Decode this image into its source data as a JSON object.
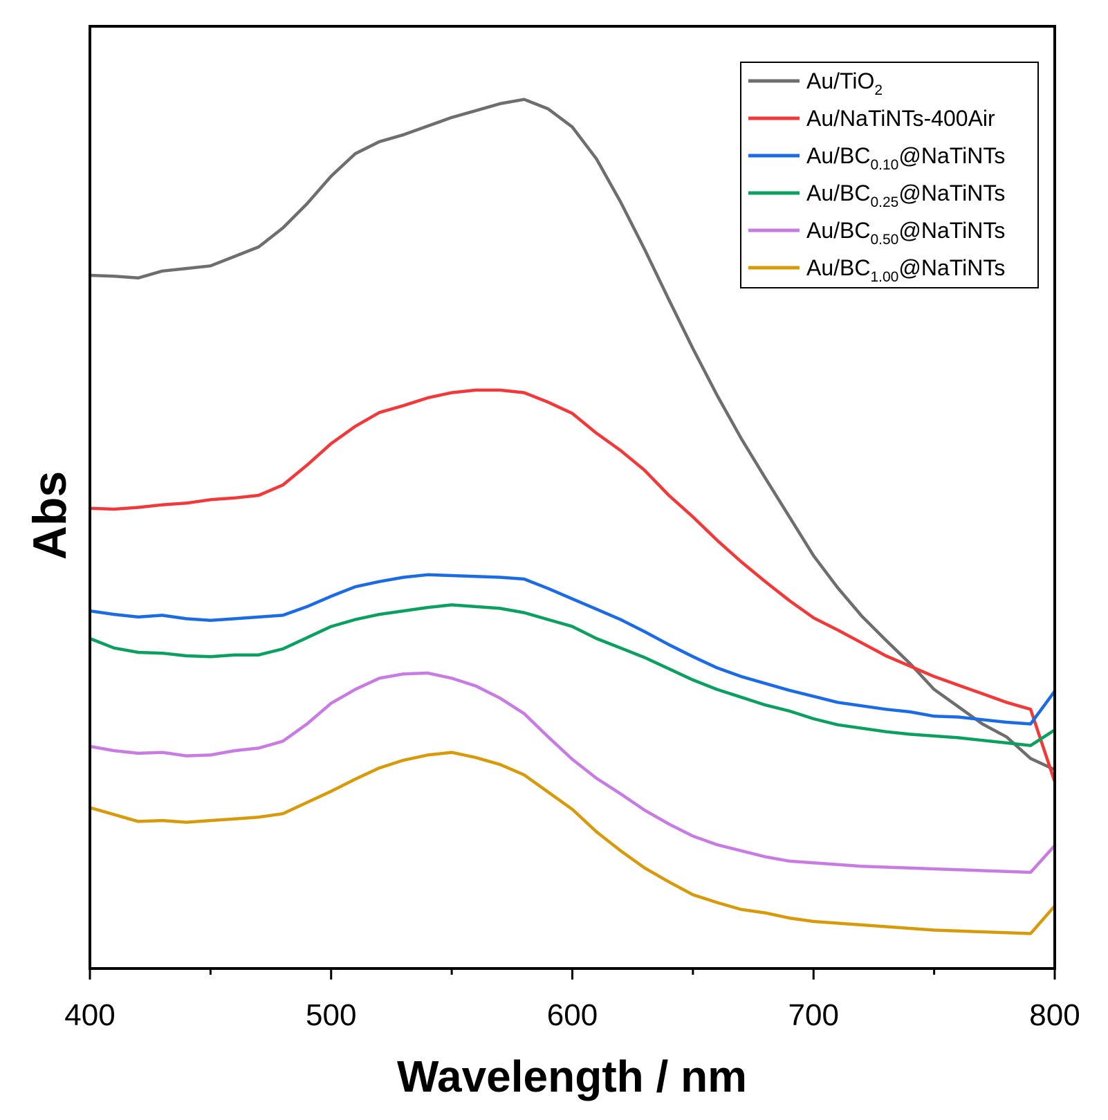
{
  "chart_data": {
    "type": "line",
    "xlabel": "Wavelength / nm",
    "ylabel": "Abs",
    "xlim": [
      400,
      800
    ],
    "ylim": [
      0,
      100
    ],
    "x_ticks": [
      400,
      500,
      600,
      700,
      800
    ],
    "x_tick_labels": [
      "400",
      "500",
      "600",
      "700",
      "800"
    ],
    "y_ticks_shown": false,
    "legend_position": "top-right",
    "series": [
      {
        "name": "Au/TiO2",
        "label_main": "Au/TiO",
        "label_sub": "2",
        "label_after": "",
        "color": "#6e6e6e",
        "x": [
          400,
          410,
          420,
          430,
          440,
          450,
          460,
          470,
          480,
          490,
          500,
          510,
          520,
          530,
          540,
          550,
          560,
          570,
          580,
          590,
          600,
          610,
          620,
          630,
          640,
          650,
          660,
          670,
          680,
          690,
          700,
          710,
          720,
          730,
          740,
          750,
          760,
          770,
          780,
          790,
          800
        ],
        "y": [
          76.5,
          76.4,
          76.2,
          77.0,
          77.3,
          77.6,
          78.7,
          79.8,
          82.0,
          84.8,
          88.0,
          90.6,
          92.0,
          92.8,
          93.8,
          94.8,
          95.6,
          96.4,
          96.9,
          95.8,
          93.7,
          90.0,
          85.0,
          79.5,
          73.7,
          68.0,
          62.6,
          57.6,
          53.0,
          48.5,
          44.0,
          40.3,
          37.0,
          34.2,
          31.5,
          28.5,
          26.5,
          24.5,
          23.0,
          20.5,
          19.2
        ]
      },
      {
        "name": "Au/NaTiNTs-400Air",
        "label_main": "Au/NaTiNTs-400Air",
        "label_sub": "",
        "label_after": "",
        "color": "#f23838",
        "x": [
          400,
          410,
          420,
          430,
          440,
          450,
          460,
          470,
          480,
          490,
          500,
          510,
          520,
          530,
          540,
          550,
          560,
          570,
          580,
          590,
          600,
          610,
          620,
          630,
          640,
          650,
          660,
          670,
          680,
          690,
          700,
          710,
          720,
          730,
          740,
          750,
          760,
          770,
          780,
          790,
          800
        ],
        "y": [
          49.5,
          49.4,
          49.6,
          49.9,
          50.1,
          50.5,
          50.7,
          51.0,
          52.2,
          54.5,
          57.0,
          59.0,
          60.6,
          61.4,
          62.3,
          62.9,
          63.2,
          63.2,
          62.9,
          61.8,
          60.5,
          58.2,
          56.2,
          53.9,
          51.0,
          48.5,
          45.8,
          43.3,
          41.0,
          38.8,
          36.8,
          35.4,
          33.9,
          32.4,
          31.2,
          30.0,
          29.0,
          28.0,
          27.0,
          26.2,
          17.8
        ]
      },
      {
        "name": "Au/BC0.10@NaTiNTs",
        "label_main": "Au/BC",
        "label_sub": "0.10",
        "label_after": "@NaTiNTs",
        "color": "#1a6be6",
        "x": [
          400,
          410,
          420,
          430,
          440,
          450,
          460,
          470,
          480,
          490,
          500,
          510,
          520,
          530,
          540,
          550,
          560,
          570,
          580,
          590,
          600,
          610,
          620,
          630,
          640,
          650,
          660,
          670,
          680,
          690,
          700,
          710,
          720,
          730,
          740,
          750,
          760,
          770,
          780,
          790,
          800
        ],
        "y": [
          37.6,
          37.2,
          36.9,
          37.1,
          36.7,
          36.5,
          36.7,
          36.9,
          37.1,
          38.1,
          39.3,
          40.4,
          41.0,
          41.5,
          41.8,
          41.7,
          41.6,
          41.5,
          41.3,
          40.2,
          39.0,
          37.8,
          36.6,
          35.2,
          33.7,
          32.3,
          31.0,
          30.0,
          29.2,
          28.4,
          27.7,
          27.0,
          26.6,
          26.2,
          25.9,
          25.4,
          25.3,
          25.0,
          24.7,
          24.5,
          28.3
        ]
      },
      {
        "name": "Au/BC0.25@NaTiNTs",
        "label_main": "Au/BC",
        "label_sub": "0.25",
        "label_after": "@NaTiNTs",
        "color": "#0aa060",
        "x": [
          400,
          410,
          420,
          430,
          440,
          450,
          460,
          470,
          480,
          490,
          500,
          510,
          520,
          530,
          540,
          550,
          560,
          570,
          580,
          590,
          600,
          610,
          620,
          630,
          640,
          650,
          660,
          670,
          680,
          690,
          700,
          710,
          720,
          730,
          740,
          750,
          760,
          770,
          780,
          790,
          800
        ],
        "y": [
          34.4,
          33.3,
          32.8,
          32.7,
          32.4,
          32.3,
          32.5,
          32.5,
          33.2,
          34.5,
          35.8,
          36.6,
          37.2,
          37.6,
          38.0,
          38.3,
          38.1,
          37.9,
          37.4,
          36.6,
          35.8,
          34.4,
          33.3,
          32.2,
          30.9,
          29.6,
          28.5,
          27.6,
          26.7,
          26.0,
          25.1,
          24.4,
          24.0,
          23.6,
          23.3,
          23.1,
          22.9,
          22.6,
          22.3,
          22.0,
          23.8
        ]
      },
      {
        "name": "Au/BC0.50@NaTiNTs",
        "label_main": "Au/BC",
        "label_sub": "0.50",
        "label_after": "@NaTiNTs",
        "color": "#c77be3",
        "x": [
          400,
          410,
          420,
          430,
          440,
          450,
          460,
          470,
          480,
          490,
          500,
          510,
          520,
          530,
          540,
          550,
          560,
          570,
          580,
          590,
          600,
          610,
          620,
          630,
          640,
          650,
          660,
          670,
          680,
          690,
          700,
          710,
          720,
          730,
          740,
          750,
          760,
          770,
          780,
          790,
          800
        ],
        "y": [
          21.9,
          21.4,
          21.1,
          21.2,
          20.8,
          20.9,
          21.4,
          21.7,
          22.5,
          24.5,
          26.9,
          28.5,
          29.8,
          30.3,
          30.4,
          29.8,
          28.9,
          27.5,
          25.7,
          23.0,
          20.4,
          18.2,
          16.4,
          14.5,
          12.9,
          11.5,
          10.5,
          9.8,
          9.1,
          8.6,
          8.4,
          8.2,
          8.0,
          7.9,
          7.8,
          7.7,
          7.6,
          7.5,
          7.4,
          7.3,
          10.4
        ]
      },
      {
        "name": "Au/BC1.00@NaTiNTs",
        "label_main": "Au/BC",
        "label_sub": "1.00",
        "label_after": "@NaTiNTs",
        "color": "#d99a0a",
        "x": [
          400,
          410,
          420,
          430,
          440,
          450,
          460,
          470,
          480,
          490,
          500,
          510,
          520,
          530,
          540,
          550,
          560,
          570,
          580,
          590,
          600,
          610,
          620,
          630,
          640,
          650,
          660,
          670,
          680,
          690,
          700,
          710,
          720,
          730,
          740,
          750,
          760,
          770,
          780,
          790,
          800
        ],
        "y": [
          14.8,
          14.0,
          13.2,
          13.3,
          13.1,
          13.3,
          13.5,
          13.7,
          14.1,
          15.4,
          16.7,
          18.1,
          19.4,
          20.3,
          20.9,
          21.2,
          20.6,
          19.8,
          18.6,
          16.6,
          14.6,
          12.0,
          9.8,
          7.8,
          6.2,
          4.7,
          3.8,
          3.0,
          2.6,
          2.0,
          1.6,
          1.4,
          1.2,
          1.0,
          0.8,
          0.6,
          0.5,
          0.4,
          0.3,
          0.2,
          3.4
        ]
      }
    ]
  }
}
